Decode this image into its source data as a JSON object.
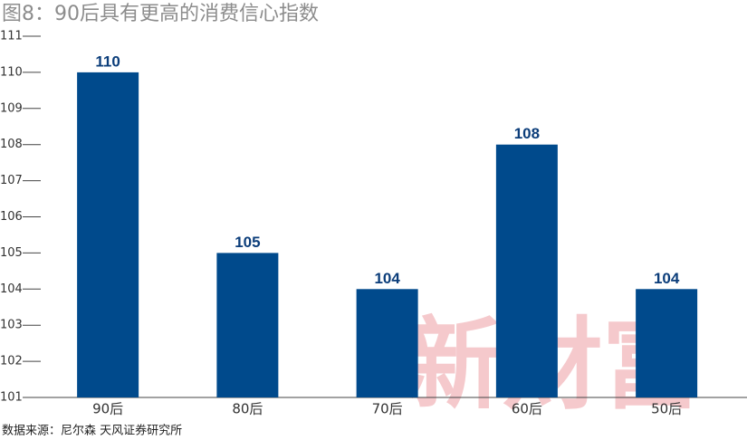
{
  "chart_data": {
    "type": "bar",
    "title": "图8：90后具有更高的消费信心指数",
    "categories": [
      "90后",
      "80后",
      "70后",
      "60后",
      "50后"
    ],
    "values": [
      110,
      105,
      104,
      108,
      104
    ],
    "color": "#004a8c",
    "ylim": [
      101,
      111
    ],
    "yticks": [
      101,
      102,
      103,
      104,
      105,
      106,
      107,
      108,
      109,
      110,
      111
    ],
    "source": "数据来源：尼尔森 天风证券研究所"
  },
  "watermark": "新財富"
}
